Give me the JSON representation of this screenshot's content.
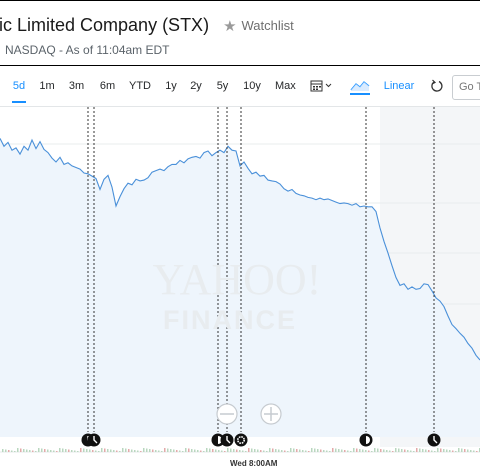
{
  "header": {
    "company": "ic Limited Company (STX)",
    "star_icon": "star-icon",
    "watchlist": "Watchlist",
    "subline": "NASDAQ - As of 11:04am EDT"
  },
  "toolbar": {
    "ranges": [
      "5d",
      "1m",
      "3m",
      "6m",
      "YTD",
      "1y",
      "2y",
      "5y",
      "10y",
      "Max"
    ],
    "active_range": "5d",
    "scale": "Linear",
    "goto_placeholder": "Go To"
  },
  "chart": {
    "watermark_top": "YAHOO!",
    "watermark_bottom": "FINANCE",
    "time_label": "Wed 8:00AM",
    "colors": {
      "line": "#4a90d9",
      "fill": "#eef5fc",
      "accent": "#188fff"
    },
    "event_icons": [
      "clock-icon",
      "clock-icon",
      "moon-icon",
      "clock-icon",
      "gear-icon",
      "moon-icon",
      "clock-icon"
    ]
  },
  "chart_data": {
    "type": "area",
    "x": [
      0,
      4,
      8,
      12,
      16,
      20,
      24,
      28,
      32,
      36,
      40,
      44,
      48,
      52,
      56,
      60,
      64,
      68,
      72,
      76,
      80,
      84,
      88,
      92,
      96,
      100,
      104,
      108,
      112,
      116,
      120,
      124,
      128,
      132,
      136,
      140,
      144,
      148,
      152,
      156,
      160,
      164,
      168,
      172,
      176,
      180,
      184,
      188,
      192,
      196,
      200,
      204,
      208,
      212,
      216,
      220,
      224,
      228,
      232,
      236,
      240,
      244,
      248,
      252,
      256,
      260,
      264,
      268,
      272,
      276,
      280,
      284,
      288,
      292,
      296,
      300,
      304,
      308,
      312,
      316,
      320,
      324,
      328,
      332,
      336,
      340,
      344,
      348,
      352,
      356,
      360,
      364,
      368,
      372,
      376,
      380,
      384,
      388,
      392,
      396,
      400,
      404,
      408,
      412,
      416,
      420,
      424,
      428,
      432,
      436,
      440,
      444,
      448,
      452,
      456,
      460,
      464,
      468,
      472,
      476,
      480
    ],
    "values": [
      100,
      99,
      99.5,
      98.5,
      98.8,
      98,
      99,
      98.5,
      99.8,
      98.7,
      99.6,
      98.6,
      98.2,
      97.5,
      97,
      97.6,
      96.7,
      96.9,
      96.5,
      96.3,
      96.1,
      95.6,
      95.5,
      95.2,
      94.9,
      93.5,
      94.8,
      95.3,
      93.8,
      91.4,
      92.6,
      93.6,
      94.3,
      94.1,
      94.8,
      94.6,
      94.7,
      95,
      95.7,
      95.9,
      96.1,
      95.9,
      96.4,
      96.7,
      96.7,
      97.2,
      96.9,
      97.4,
      97.6,
      97.7,
      97.5,
      98.2,
      98.4,
      97.8,
      98.2,
      98.5,
      98.2,
      99,
      98.5,
      98.4,
      96.5,
      97,
      96.2,
      95.5,
      95.7,
      95.2,
      95.3,
      94.7,
      94.6,
      94.5,
      94.2,
      93.6,
      93.3,
      93.5,
      93,
      92.8,
      92.7,
      92.5,
      92.4,
      92.2,
      92.4,
      92.2,
      92.3,
      92.1,
      91.9,
      91.7,
      91.8,
      91.7,
      91.5,
      91.7,
      91.3,
      91.4,
      91.3,
      91.3,
      90.7,
      88.6,
      86.9,
      85.4,
      83.8,
      82.3,
      81.3,
      81.5,
      80.8,
      81.1,
      80.8,
      80.9,
      81.5,
      81.4,
      80.6,
      79.7,
      79.3,
      78.6,
      77.4,
      76.3,
      75.8,
      75.2,
      74.7,
      73.9,
      73.3,
      72.4,
      71.8
    ],
    "ylim": [
      62,
      104
    ],
    "grid": true,
    "event_positions": [
      88,
      94,
      218,
      227,
      241,
      366,
      434
    ]
  }
}
